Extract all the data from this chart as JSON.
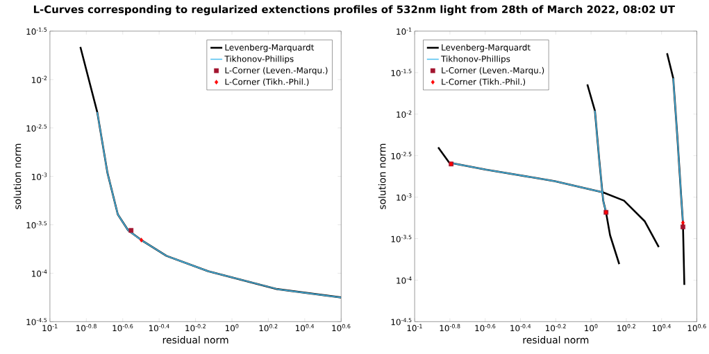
{
  "chart_data": [
    {
      "type": "line",
      "title": "L-Curves corresponding to regularized extenctions profiles of 532nm light from 28th of March 2022, 08:02 UT",
      "xlabel": "residual norm",
      "ylabel": "solution norm",
      "log": "xy",
      "legend": "top right",
      "xlim": [
        0.1,
        3.981
      ],
      "ylim": [
        3.162e-05,
        0.03162
      ],
      "xticks": [
        {
          "value": 0.1,
          "label": "10$^{-1}$"
        },
        {
          "value": 0.1585,
          "label": "10$^{-0.8}$"
        },
        {
          "value": 0.2512,
          "label": "10$^{-0.6}$"
        },
        {
          "value": 0.3981,
          "label": "10$^{-0.4}$"
        },
        {
          "value": 0.631,
          "label": "10$^{-0.2}$"
        },
        {
          "value": 1,
          "label": "10$^{0}$"
        },
        {
          "value": 1.585,
          "label": "10$^{0.2}$"
        },
        {
          "value": 2.512,
          "label": "10$^{0.4}$"
        },
        {
          "value": 3.981,
          "label": "10$^{0.6}$"
        }
      ],
      "yticks": [
        {
          "value": 3.162e-05,
          "label": "10$^{-4.5}$"
        },
        {
          "value": 0.0001,
          "label": "10$^{-4}$"
        },
        {
          "value": 0.0003162,
          "label": "10$^{-3.5}$"
        },
        {
          "value": 0.001,
          "label": "10$^{-3}$"
        },
        {
          "value": 0.003162,
          "label": "10$^{-2.5}$"
        },
        {
          "value": 0.01,
          "label": "10$^{-2}$"
        },
        {
          "value": 0.03162,
          "label": "10$^{-1.5}$"
        }
      ],
      "series": [
        {
          "name": "Levenberg-Marquardt",
          "color": "#000000",
          "x": [
            0.147,
            0.182,
            0.207,
            0.236,
            0.269,
            0.318,
            0.437,
            0.74,
            1.778,
            3.981
          ],
          "values": [
            0.0217,
            0.00461,
            0.00109,
            0.000405,
            0.000277,
            0.00022,
            0.000151,
            0.000105,
            6.85e-05,
            5.62e-05
          ]
        },
        {
          "name": "Tikhonov-Phillips",
          "color": "#4dbeee",
          "x": [
            0.182,
            0.207,
            0.236,
            0.269,
            0.318,
            0.437,
            0.74,
            1.778,
            3.981
          ],
          "values": [
            0.00461,
            0.00109,
            0.000405,
            0.000277,
            0.00022,
            0.000151,
            0.000105,
            6.85e-05,
            5.62e-05
          ]
        },
        {
          "name": "L-Corner (Leven.-Marqu.)",
          "type": "scatter",
          "marker": "square",
          "color": "#a2142f",
          "x": [
            0.279
          ],
          "values": [
            0.000277
          ]
        },
        {
          "name": "L-Corner (Tikh.-Phil.)",
          "type": "scatter",
          "marker": "diamond",
          "color": "#ff0000",
          "x": [
            0.318
          ],
          "values": [
            0.00022
          ]
        }
      ]
    },
    {
      "type": "line",
      "xlabel": "residual norm",
      "ylabel": "solution norm",
      "log": "xy",
      "legend": "top left",
      "xlim": [
        0.1,
        3.981
      ],
      "ylim": [
        3.162e-05,
        0.1
      ],
      "xticks": [
        {
          "value": 0.1,
          "label": "10$^{-1}$"
        },
        {
          "value": 0.1585,
          "label": "10$^{-0.8}$"
        },
        {
          "value": 0.2512,
          "label": "10$^{-0.6}$"
        },
        {
          "value": 0.3981,
          "label": "10$^{-0.4}$"
        },
        {
          "value": 0.631,
          "label": "10$^{-0.2}$"
        },
        {
          "value": 1,
          "label": "10$^{0}$"
        },
        {
          "value": 1.585,
          "label": "10$^{0.2}$"
        },
        {
          "value": 2.512,
          "label": "10$^{0.4}$"
        },
        {
          "value": 3.981,
          "label": "10$^{0.6}$"
        }
      ],
      "yticks": [
        {
          "value": 3.162e-05,
          "label": "10$^{-4.5}$"
        },
        {
          "value": 0.0001,
          "label": "10$^{-4}$"
        },
        {
          "value": 0.0003162,
          "label": "10$^{-3.5}$"
        },
        {
          "value": 0.001,
          "label": "10$^{-3}$"
        },
        {
          "value": 0.003162,
          "label": "10$^{-2.5}$"
        },
        {
          "value": 0.01,
          "label": "10$^{-2}$"
        },
        {
          "value": 0.03162,
          "label": "10$^{-1.5}$"
        },
        {
          "value": 0.1,
          "label": "10$^{-1}$"
        }
      ],
      "series": [
        {
          "name": "Levenberg-Marquardt",
          "color": "#000000",
          "x": [
            0.136,
            0.157,
            0.252,
            0.622,
            1.172,
            1.538,
            2.018,
            2.421
          ],
          "values": [
            0.00398,
            0.00261,
            0.00215,
            0.00156,
            0.00114,
            0.000908,
            0.000511,
            0.000251
          ]
        },
        {
          "color": "#000000",
          "x": [
            0.953,
            1.052,
            1.112,
            1.172,
            1.216,
            1.282,
            1.445
          ],
          "values": [
            0.0228,
            0.011,
            0.00287,
            0.000908,
            0.000656,
            0.000348,
            0.000156
          ]
        },
        {
          "color": "#000000",
          "x": [
            2.698,
            2.924,
            3.09,
            3.236,
            3.319,
            3.381
          ],
          "values": [
            0.0541,
            0.0271,
            0.00511,
            0.0011,
            0.000492,
            8.75e-05
          ]
        },
        {
          "name": "Tikhonov-Phillips",
          "color": "#4dbeee",
          "x": [
            0.157,
            0.252,
            0.622,
            1.172
          ],
          "values": [
            0.00261,
            0.00215,
            0.00156,
            0.00114
          ]
        },
        {
          "color": "#4dbeee",
          "x": [
            1.052,
            1.112,
            1.172,
            1.216
          ],
          "values": [
            0.011,
            0.00287,
            0.000908,
            0.000656
          ]
        },
        {
          "color": "#4dbeee",
          "x": [
            2.924,
            3.09,
            3.236,
            3.319
          ],
          "values": [
            0.0271,
            0.00511,
            0.0011,
            0.000492
          ]
        },
        {
          "name": "L-Corner (Leven.-Marqu.)",
          "type": "scatter",
          "marker": "square",
          "color": "#a2142f",
          "x": [
            0.161,
            1.216,
            3.319
          ],
          "values": [
            0.00251,
            0.000656,
            0.000438
          ]
        },
        {
          "name": "L-Corner (Tikh.-Phil.)",
          "type": "scatter",
          "marker": "diamond",
          "color": "#ff0000",
          "x": [
            0.161,
            1.216,
            3.319
          ],
          "values": [
            0.00251,
            0.000656,
            0.000492
          ]
        }
      ]
    }
  ]
}
